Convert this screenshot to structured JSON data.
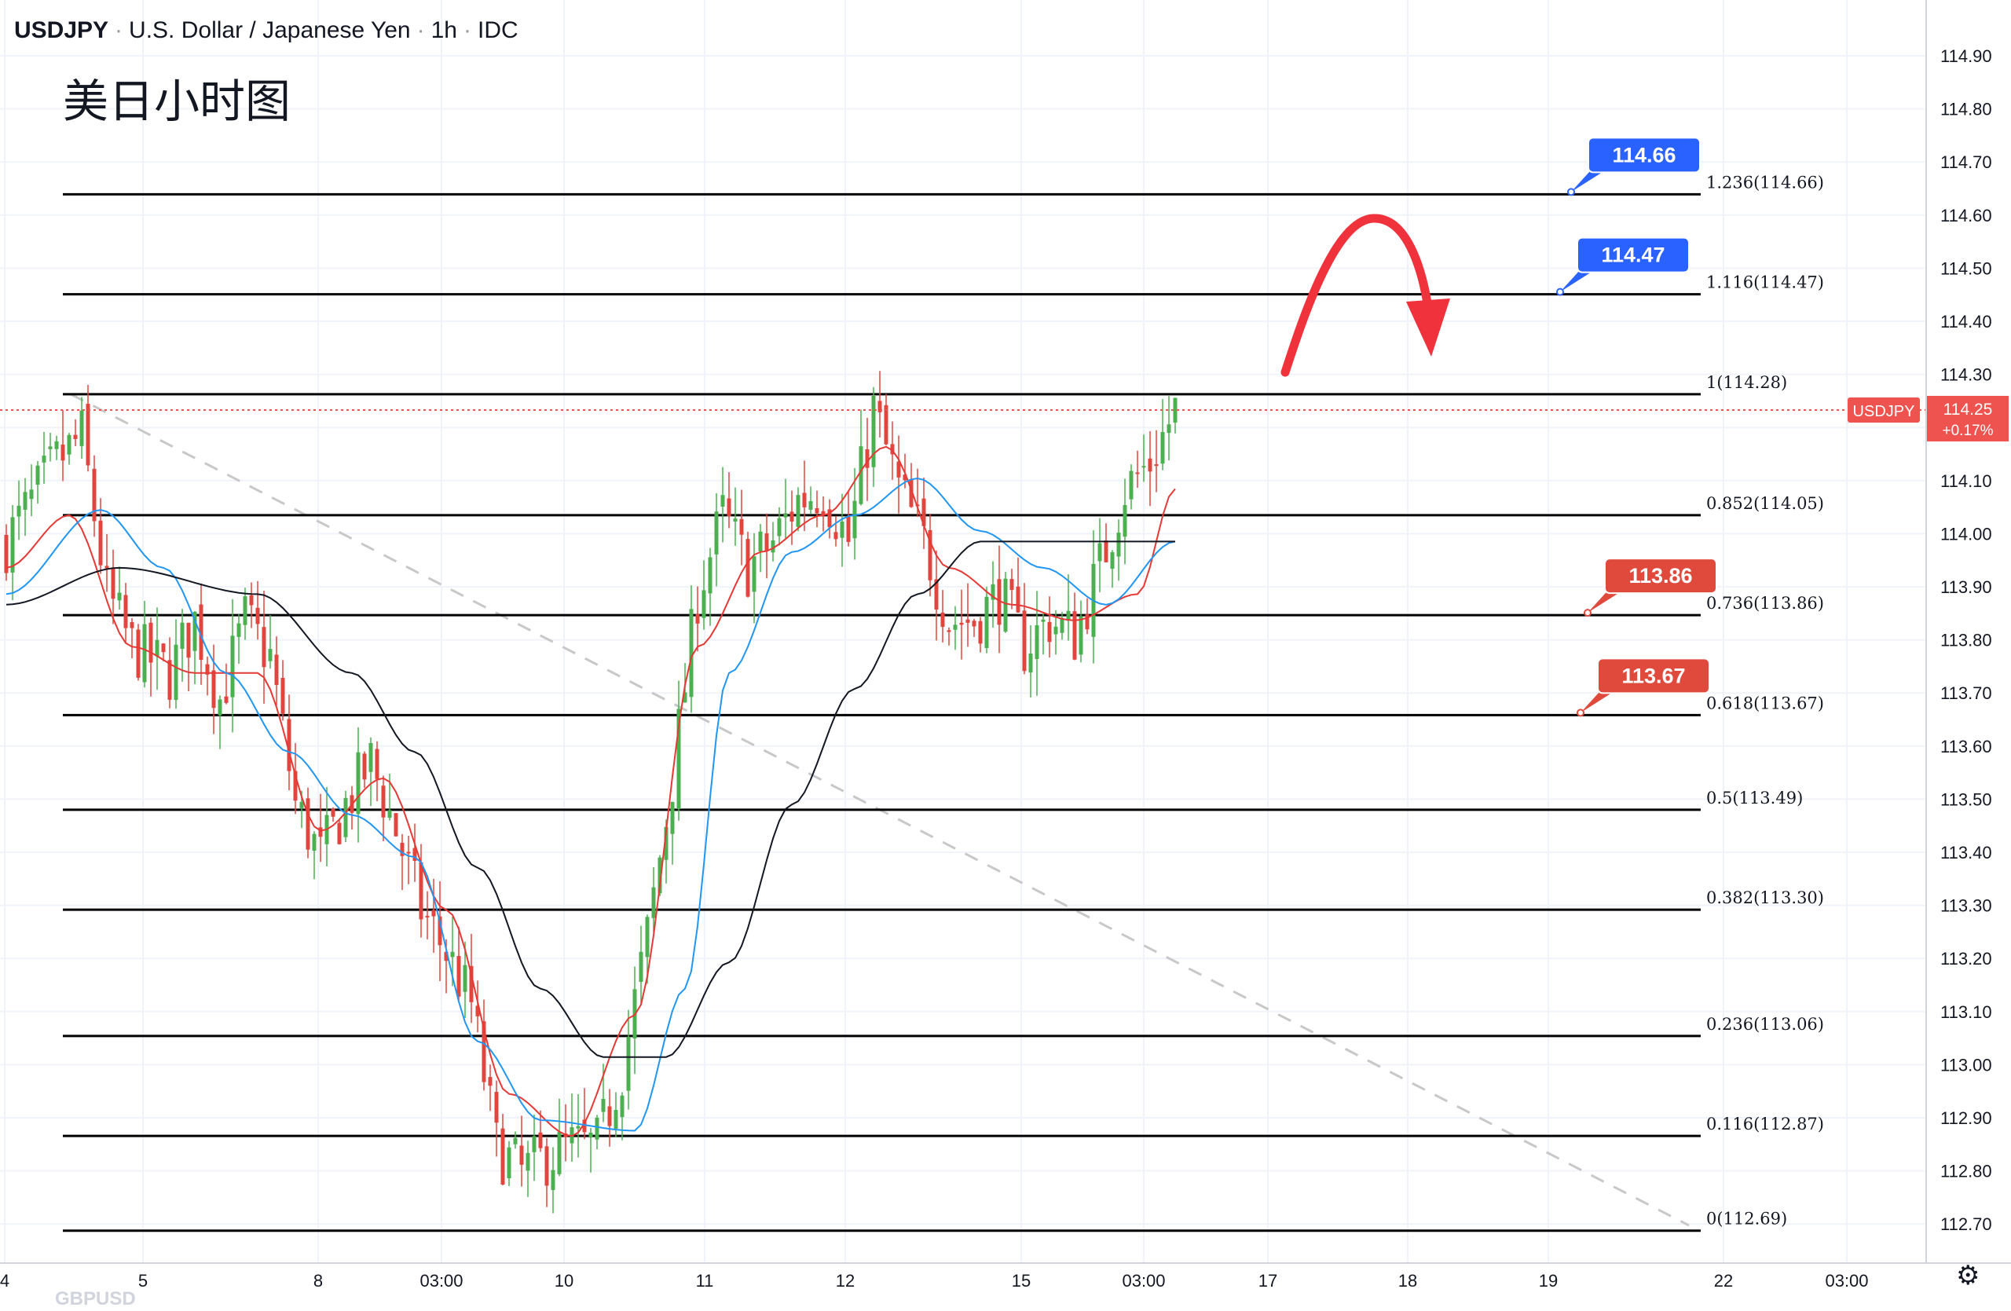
{
  "header": {
    "symbol": "USDJPY",
    "name": "U.S. Dollar / Japanese Yen",
    "interval": "1h",
    "source": "IDC",
    "separator": "·"
  },
  "annotation_title": "美日小时图",
  "watermark": "GBPUSD",
  "settings_icon": "gear-icon",
  "colors": {
    "up": "#4caf50",
    "down": "#e0463e",
    "ma_fast": "#e53935",
    "ma_mid": "#2196f3",
    "ma_slow": "#131722",
    "price_tag": "#ef5350",
    "label_blue": "#2962ff",
    "label_red": "#e04a3c",
    "arrow": "#f0323c"
  },
  "chart_data": {
    "type": "candlestick",
    "y_axis": {
      "range": [
        112.64,
        114.94
      ],
      "ticks": [
        "114.90",
        "114.80",
        "114.70",
        "114.60",
        "114.50",
        "114.40",
        "114.30",
        "114.20",
        "114.10",
        "114.00",
        "113.90",
        "113.80",
        "113.70",
        "113.60",
        "113.50",
        "113.40",
        "113.30",
        "113.20",
        "113.10",
        "113.00",
        "112.90",
        "112.80",
        "112.70"
      ],
      "grid": true
    },
    "x_axis": {
      "ticks": [
        "4",
        "5",
        "8",
        "03:00",
        "10",
        "11",
        "12",
        "15",
        "03:00",
        "17",
        "18",
        "19",
        "22",
        "03:00"
      ]
    },
    "last_price": {
      "symbol": "USDJPY",
      "value": "114.25",
      "change": "+0.17%"
    },
    "fibonacci": [
      {
        "level": "1.236(114.66)",
        "price": 114.66
      },
      {
        "level": "1.116(114.47)",
        "price": 114.47
      },
      {
        "level": "1(114.28)",
        "price": 114.28
      },
      {
        "level": "0.852(114.05)",
        "price": 114.05
      },
      {
        "level": "0.736(113.86)",
        "price": 113.86
      },
      {
        "level": "0.618(113.67)",
        "price": 113.67
      },
      {
        "level": "0.5(113.49)",
        "price": 113.49
      },
      {
        "level": "0.382(113.30)",
        "price": 113.3
      },
      {
        "level": "0.236(113.06)",
        "price": 113.06
      },
      {
        "level": "0.116(112.87)",
        "price": 112.87
      },
      {
        "level": "0(112.69)",
        "price": 112.69
      }
    ],
    "price_labels": [
      {
        "text": "114.66",
        "price": 114.66,
        "color": "blue"
      },
      {
        "text": "114.47",
        "price": 114.47,
        "color": "blue"
      },
      {
        "text": "113.86",
        "price": 113.86,
        "color": "red"
      },
      {
        "text": "113.67",
        "price": 113.67,
        "color": "red"
      }
    ],
    "trendline": {
      "style": "dashed",
      "from": {
        "bar": 4,
        "price": 114.28
      },
      "to": {
        "bar": 216,
        "price": 112.7
      }
    },
    "close_path": [
      [
        0,
        114.0
      ],
      [
        8,
        114.15
      ],
      [
        12,
        114.2
      ],
      [
        16,
        113.9
      ],
      [
        20,
        113.8
      ],
      [
        26,
        113.75
      ],
      [
        30,
        113.85
      ],
      [
        34,
        113.7
      ],
      [
        38,
        113.85
      ],
      [
        42,
        113.78
      ],
      [
        46,
        113.5
      ],
      [
        50,
        113.4
      ],
      [
        54,
        113.5
      ],
      [
        58,
        113.58
      ],
      [
        62,
        113.45
      ],
      [
        66,
        113.3
      ],
      [
        70,
        113.22
      ],
      [
        74,
        113.12
      ],
      [
        78,
        112.85
      ],
      [
        82,
        112.8
      ],
      [
        86,
        112.83
      ],
      [
        90,
        112.85
      ],
      [
        94,
        112.85
      ],
      [
        98,
        113.0
      ],
      [
        102,
        113.25
      ],
      [
        106,
        113.55
      ],
      [
        110,
        113.9
      ],
      [
        114,
        114.05
      ],
      [
        118,
        113.95
      ],
      [
        122,
        114.0
      ],
      [
        126,
        114.08
      ],
      [
        130,
        114.1
      ],
      [
        134,
        114.0
      ],
      [
        138,
        114.25
      ],
      [
        142,
        114.1
      ],
      [
        146,
        114.0
      ],
      [
        150,
        113.85
      ],
      [
        154,
        113.85
      ],
      [
        158,
        113.9
      ],
      [
        162,
        113.8
      ],
      [
        166,
        113.85
      ],
      [
        170,
        113.82
      ],
      [
        174,
        113.95
      ],
      [
        178,
        114.1
      ],
      [
        182,
        114.15
      ],
      [
        186,
        114.25
      ]
    ],
    "moving_averages": [
      {
        "color": "red",
        "values": [
          [
            0,
            113.95
          ],
          [
            10,
            114.05
          ],
          [
            20,
            113.8
          ],
          [
            30,
            113.75
          ],
          [
            40,
            113.75
          ],
          [
            50,
            113.45
          ],
          [
            60,
            113.55
          ],
          [
            70,
            113.3
          ],
          [
            80,
            112.95
          ],
          [
            90,
            112.87
          ],
          [
            100,
            113.1
          ],
          [
            110,
            113.8
          ],
          [
            120,
            113.98
          ],
          [
            130,
            114.05
          ],
          [
            140,
            114.18
          ],
          [
            150,
            113.95
          ],
          [
            160,
            113.88
          ],
          [
            170,
            113.85
          ],
          [
            180,
            113.9
          ],
          [
            186,
            114.1
          ]
        ]
      },
      {
        "color": "blue",
        "values": [
          [
            0,
            113.9
          ],
          [
            15,
            114.06
          ],
          [
            25,
            113.95
          ],
          [
            35,
            113.75
          ],
          [
            45,
            113.6
          ],
          [
            55,
            113.48
          ],
          [
            65,
            113.4
          ],
          [
            75,
            113.05
          ],
          [
            85,
            112.9
          ],
          [
            100,
            112.88
          ],
          [
            108,
            113.15
          ],
          [
            115,
            113.75
          ],
          [
            125,
            113.98
          ],
          [
            135,
            114.05
          ],
          [
            145,
            114.12
          ],
          [
            155,
            114.02
          ],
          [
            165,
            113.95
          ],
          [
            175,
            113.88
          ],
          [
            186,
            114.0
          ]
        ]
      },
      {
        "color": "black",
        "values": [
          [
            0,
            113.88
          ],
          [
            18,
            113.95
          ],
          [
            40,
            113.9
          ],
          [
            55,
            113.75
          ],
          [
            65,
            113.6
          ],
          [
            75,
            113.38
          ],
          [
            85,
            113.15
          ],
          [
            95,
            113.02
          ],
          [
            105,
            113.02
          ],
          [
            115,
            113.2
          ],
          [
            125,
            113.5
          ],
          [
            135,
            113.72
          ],
          [
            145,
            113.9
          ],
          [
            155,
            114.0
          ],
          [
            170,
            114.0
          ],
          [
            186,
            114.0
          ]
        ]
      }
    ]
  }
}
